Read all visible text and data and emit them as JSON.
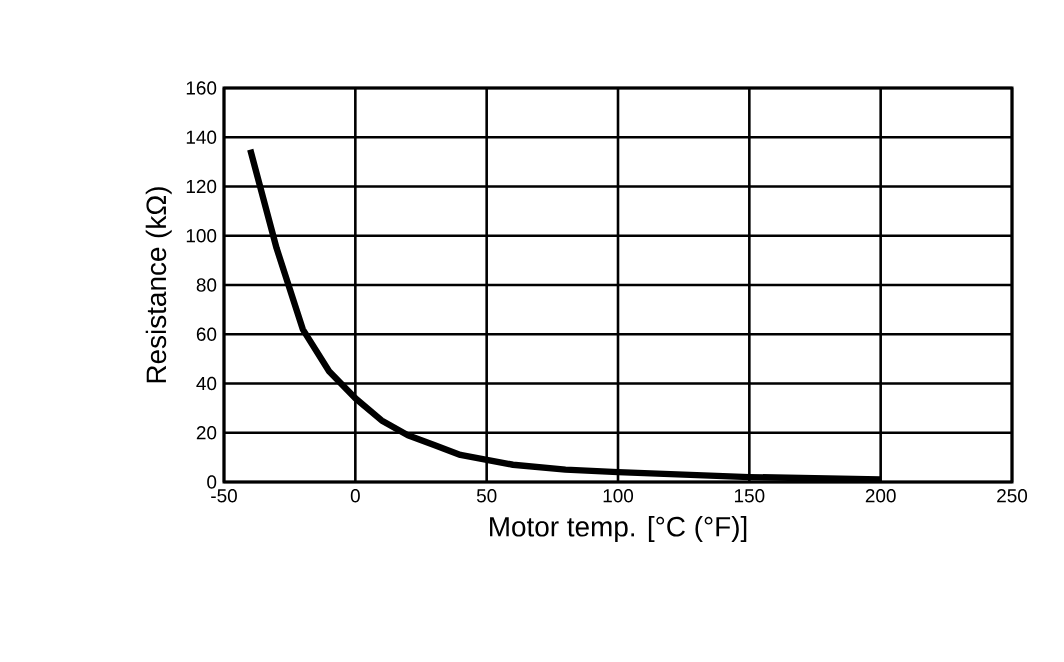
{
  "chart_data": {
    "type": "line",
    "xlabel": "Motor temp. [°C (°F)]",
    "ylabel": "Resistance (kΩ)",
    "x": [
      -40,
      -30,
      -20,
      -10,
      0,
      10,
      20,
      30,
      40,
      60,
      80,
      100,
      150,
      200
    ],
    "series": [
      {
        "color": "#000000",
        "values": [
          135,
          95,
          62,
          45,
          34,
          25,
          19,
          15,
          11,
          7,
          5,
          4,
          2,
          1
        ]
      }
    ],
    "xlim": [
      -50,
      250
    ],
    "xticks": [
      -50,
      0,
      50,
      100,
      150,
      200,
      250
    ],
    "ylim": [
      0,
      160
    ],
    "yticks": [
      0,
      20,
      40,
      60,
      80,
      100,
      120,
      140,
      160
    ],
    "grid": true,
    "marker": "none",
    "line_style": "solid"
  }
}
